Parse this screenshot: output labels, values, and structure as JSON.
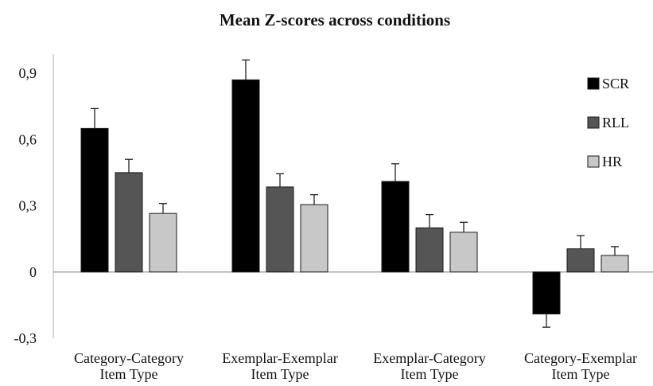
{
  "chart_data": {
    "type": "bar",
    "title": "Mean Z-scores across conditions",
    "categories": [
      [
        "Category-Category",
        "Item Type"
      ],
      [
        "Exemplar-Exemplar",
        "Item Type"
      ],
      [
        "Exemplar-Category",
        "Item Type"
      ],
      [
        "Category-Exemplar",
        "Item Type"
      ]
    ],
    "series": [
      {
        "name": "SCR",
        "color": "#000000",
        "values": [
          0.65,
          0.87,
          0.41,
          -0.19
        ],
        "errors": [
          0.09,
          0.09,
          0.08,
          0.06
        ]
      },
      {
        "name": "RLL",
        "color": "#555555",
        "values": [
          0.45,
          0.385,
          0.2,
          0.105
        ],
        "errors": [
          0.06,
          0.06,
          0.06,
          0.06
        ]
      },
      {
        "name": "HR",
        "color": "#c8c8c8",
        "values": [
          0.265,
          0.305,
          0.18,
          0.075
        ],
        "errors": [
          0.045,
          0.045,
          0.045,
          0.04
        ]
      }
    ],
    "ylim": [
      -0.3,
      0.9
    ],
    "yticks": [
      "-0,3",
      "0",
      "0,3",
      "0,6",
      "0,9"
    ],
    "ytick_values": [
      -0.3,
      0,
      0.3,
      0.6,
      0.9
    ],
    "xlabel": "",
    "ylabel": "",
    "grid": false,
    "legend_position": "right"
  }
}
